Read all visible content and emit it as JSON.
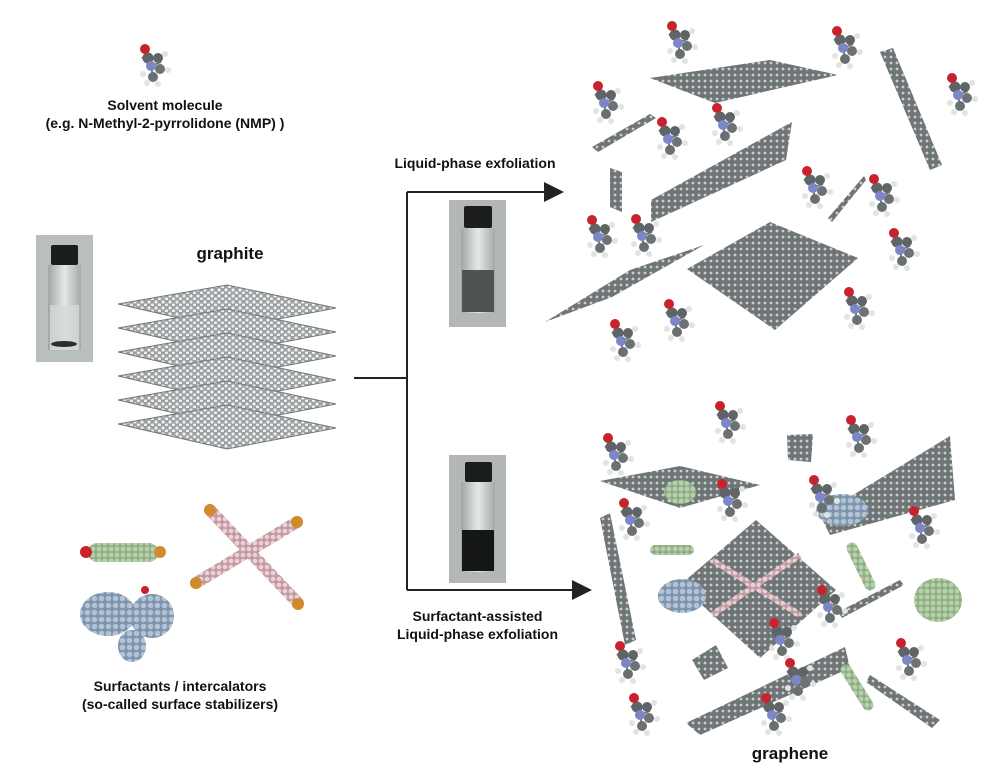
{
  "labels": {
    "solvent_line1": "Solvent molecule",
    "solvent_line2": "(e.g. N-Methyl-2-pyrrolidone (NMP) )",
    "graphite": "graphite",
    "lpe": "Liquid-phase exfoliation",
    "surf_line1": "Surfactant-assisted",
    "surf_line2": "Liquid-phase exfoliation",
    "stab_line1": "Surfactants / intercalators",
    "stab_line2": "(so-called surface stabilizers)",
    "graphene": "graphene"
  },
  "vials": [
    {
      "name": "graphite-vial-photo",
      "liquid": "clear",
      "sediment": "bottom"
    },
    {
      "name": "lpe-vial-photo",
      "liquid": "grey-dispersion",
      "sediment": "none"
    },
    {
      "name": "surfactant-vial-photo",
      "liquid": "black-dispersion",
      "sediment": "none"
    }
  ],
  "colors": {
    "carbon": "#8e9496",
    "hydrogen": "#e6e8e8",
    "oxygen": "#c8232c",
    "nitrogen": "#7d86c6",
    "surfactant_green": "#9fbf93",
    "surfactant_blue": "#8fa6bd",
    "surfactant_pink": "#d9b8bd",
    "arrow": "#222222"
  }
}
